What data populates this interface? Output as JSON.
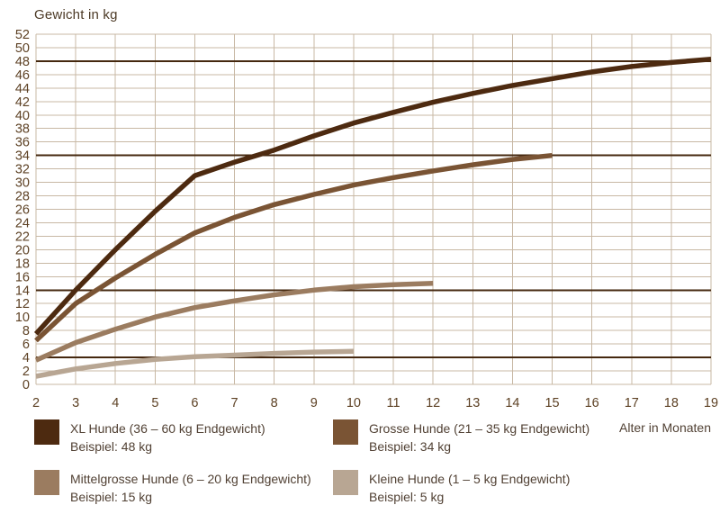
{
  "title": "Gewicht in kg",
  "x_axis_label": "Alter in Monaten",
  "colors": {
    "grid": "#c8b8a4",
    "reference_line": "#45280f",
    "tick_text": "#5d4124",
    "legend_text": "#514134"
  },
  "chart_data": {
    "type": "line",
    "title": "Gewicht in kg",
    "xlabel": "Alter in Monaten",
    "ylabel": "Gewicht in kg",
    "xlim": [
      2,
      19
    ],
    "ylim": [
      0,
      52
    ],
    "grid": true,
    "legend_position": "bottom",
    "x_ticks": [
      2,
      3,
      4,
      5,
      6,
      7,
      8,
      9,
      10,
      11,
      12,
      13,
      14,
      15,
      16,
      17,
      18,
      19
    ],
    "y_ticks": [
      0,
      2,
      4,
      6,
      8,
      10,
      12,
      14,
      16,
      18,
      20,
      22,
      24,
      26,
      28,
      30,
      32,
      34,
      36,
      38,
      40,
      42,
      44,
      46,
      48,
      50,
      52
    ],
    "reference_lines": {
      "values": [
        48,
        34,
        14,
        4
      ]
    },
    "series": [
      {
        "name": "XL Hunde (36 – 60 kg Endgewicht), Beispiel: 48 kg",
        "color": "#4d2a10",
        "points": [
          [
            2,
            7.5
          ],
          [
            3,
            14
          ],
          [
            4,
            20
          ],
          [
            5,
            25.7
          ],
          [
            6,
            31
          ],
          [
            7,
            33
          ],
          [
            8,
            34.8
          ],
          [
            9,
            36.9
          ],
          [
            10,
            38.8
          ],
          [
            11,
            40.4
          ],
          [
            12,
            41.9
          ],
          [
            13,
            43.2
          ],
          [
            14,
            44.4
          ],
          [
            15,
            45.4
          ],
          [
            16,
            46.4
          ],
          [
            17,
            47.2
          ],
          [
            18,
            47.8
          ],
          [
            19,
            48.3
          ]
        ]
      },
      {
        "name": "Grosse Hunde (21 – 35 kg Endgewicht), Beispiel: 34 kg",
        "color": "#7a5434",
        "points": [
          [
            2,
            6.5
          ],
          [
            3,
            12
          ],
          [
            4,
            15.8
          ],
          [
            5,
            19.3
          ],
          [
            6,
            22.5
          ],
          [
            7,
            24.8
          ],
          [
            8,
            26.7
          ],
          [
            9,
            28.2
          ],
          [
            10,
            29.6
          ],
          [
            11,
            30.7
          ],
          [
            12,
            31.7
          ],
          [
            13,
            32.6
          ],
          [
            14,
            33.4
          ],
          [
            15,
            34
          ]
        ]
      },
      {
        "name": "Mittelgrosse Hunde (6 – 20 kg Endgewicht), Beispiel: 15 kg",
        "color": "#9b7c60",
        "points": [
          [
            2,
            3.6
          ],
          [
            3,
            6.2
          ],
          [
            4,
            8.2
          ],
          [
            5,
            10
          ],
          [
            6,
            11.4
          ],
          [
            7,
            12.4
          ],
          [
            8,
            13.3
          ],
          [
            9,
            14
          ],
          [
            10,
            14.5
          ],
          [
            11,
            14.8
          ],
          [
            12,
            15
          ]
        ]
      },
      {
        "name": "Kleine Hunde (1 – 5 kg Endgewicht), Beispiel: 5 kg",
        "color": "#b8a693",
        "points": [
          [
            2,
            1.2
          ],
          [
            3,
            2.3
          ],
          [
            4,
            3.1
          ],
          [
            5,
            3.7
          ],
          [
            6,
            4.1
          ],
          [
            7,
            4.35
          ],
          [
            8,
            4.6
          ],
          [
            9,
            4.8
          ],
          [
            10,
            4.9
          ]
        ]
      }
    ]
  },
  "legend": {
    "items": [
      {
        "label": "XL Hunde (36 – 60 kg Endgewicht)",
        "example": "Beispiel: 48 kg",
        "color": "#4d2a10"
      },
      {
        "label": "Grosse Hunde (21 – 35 kg Endgewicht)",
        "example": "Beispiel: 34 kg",
        "color": "#7a5434"
      },
      {
        "label": "Mittelgrosse Hunde (6 – 20 kg Endgewicht)",
        "example": "Beispiel: 15 kg",
        "color": "#9b7c60"
      },
      {
        "label": "Kleine Hunde (1 – 5 kg Endgewicht)",
        "example": "Beispiel: 5 kg",
        "color": "#b8a693"
      }
    ]
  }
}
